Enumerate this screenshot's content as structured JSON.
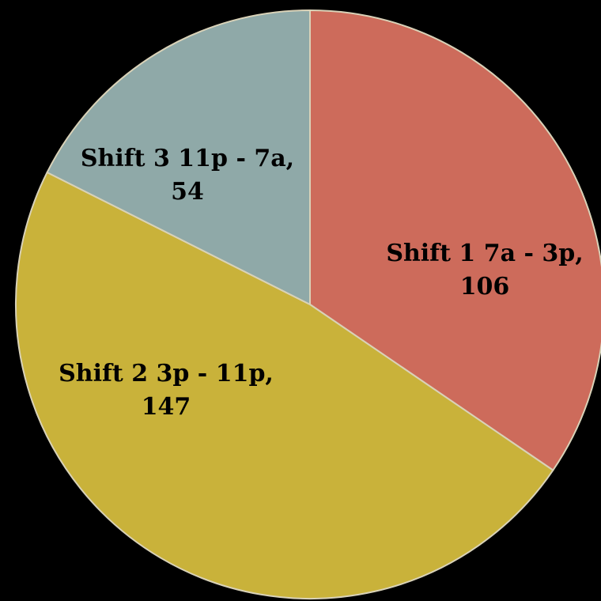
{
  "chart_data": {
    "type": "pie",
    "categories": [
      "Shift 1 7a - 3p,",
      "Shift 2 3p - 11p,",
      "Shift 3 11p - 7a,"
    ],
    "values": [
      106,
      147,
      54
    ],
    "colors": [
      "#cd6b5b",
      "#c9b23a",
      "#8fa9a8"
    ]
  }
}
